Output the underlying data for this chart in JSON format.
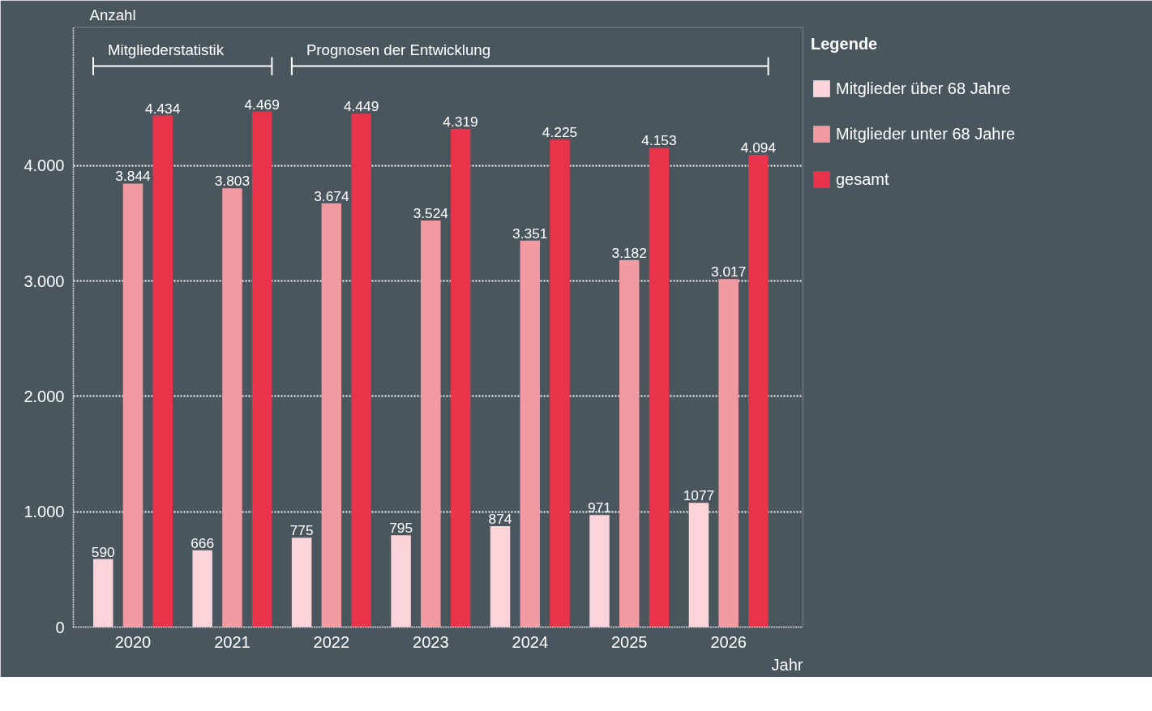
{
  "chart_data": {
    "type": "bar",
    "xlabel": "Jahr",
    "ylabel": "Anzahl",
    "legend_title": "Legende",
    "categories": [
      "2020",
      "2021",
      "2022",
      "2023",
      "2024",
      "2025",
      "2026"
    ],
    "series": [
      {
        "name": "Mitglieder über 68 Jahre",
        "color": "#fad4d8",
        "values": [
          590,
          666,
          775,
          795,
          874,
          971,
          1077
        ],
        "value_labels": [
          "590",
          "666",
          "775",
          "795",
          "874",
          "971",
          "1077"
        ]
      },
      {
        "name": "Mitglieder unter 68 Jahre",
        "color": "#f29aa2",
        "values": [
          3844,
          3803,
          3674,
          3524,
          3351,
          3182,
          3017
        ],
        "value_labels": [
          "3.844",
          "3.803",
          "3.674",
          "3.524",
          "3.351",
          "3.182",
          "3.017"
        ]
      },
      {
        "name": "gesamt",
        "color": "#e8334a",
        "values": [
          4434,
          4469,
          4449,
          4319,
          4225,
          4153,
          4094
        ],
        "value_labels": [
          "4.434",
          "4.469",
          "4.449",
          "4.319",
          "4.225",
          "4.153",
          "4.094"
        ]
      }
    ],
    "ylim": [
      0,
      5200
    ],
    "yticks": [
      0,
      {
        "value": 1000,
        "label": "1.000"
      },
      {
        "value": 2000,
        "label": "2.000"
      },
      {
        "value": 3000,
        "label": "3.000"
      },
      {
        "value": 4000,
        "label": "4.000"
      }
    ],
    "grid": "y",
    "legend": "right",
    "annotations": [
      "Mitgliederstatistik",
      "Prognosen der Entwicklung"
    ]
  }
}
